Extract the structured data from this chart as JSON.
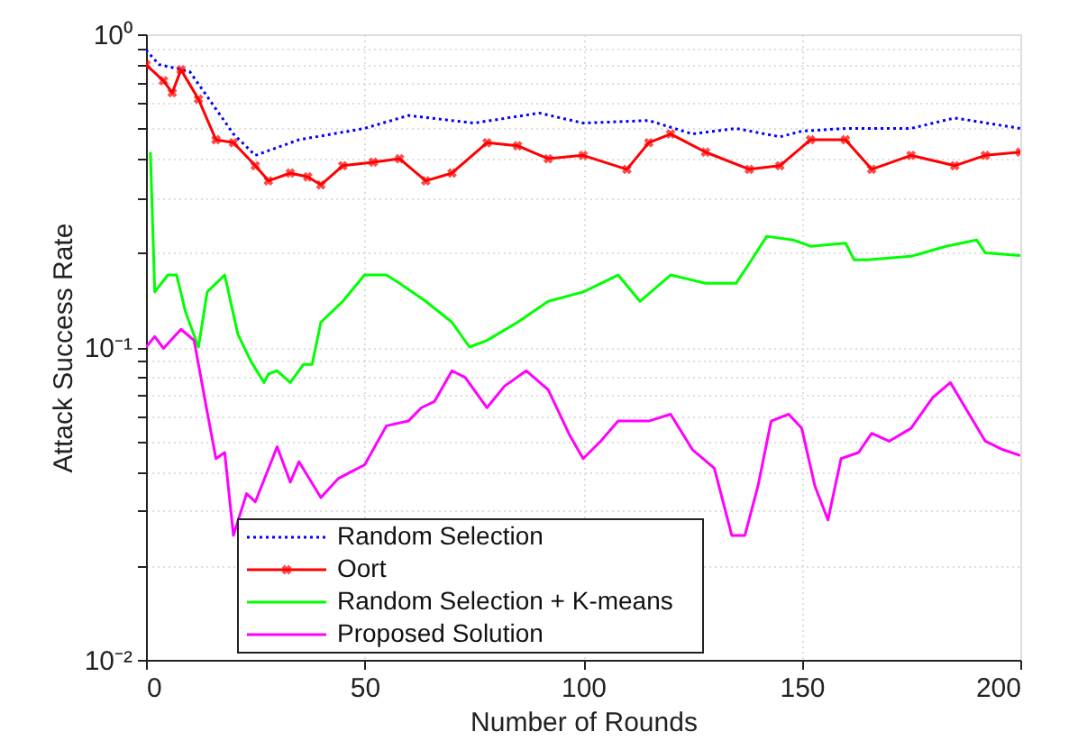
{
  "chart_data": {
    "type": "line",
    "xlabel": "Number of Rounds",
    "ylabel": "Attack Success Rate",
    "log": "y",
    "grid": true,
    "legend": "bottom left",
    "xlim": [
      0,
      200
    ],
    "xticks": [
      0,
      50,
      100,
      150,
      200
    ],
    "ylim": [
      0.01,
      1
    ],
    "yticks": [
      {
        "value": 0.01,
        "label": "10⁻²"
      },
      {
        "value": 0.02,
        "label": null
      },
      {
        "value": 0.03,
        "label": null
      },
      {
        "value": 0.04,
        "label": null
      },
      {
        "value": 0.05,
        "label": null
      },
      {
        "value": 0.06,
        "label": null
      },
      {
        "value": 0.07,
        "label": null
      },
      {
        "value": 0.08,
        "label": null
      },
      {
        "value": 0.09,
        "label": null
      },
      {
        "value": 0.1,
        "label": "10⁻¹"
      },
      {
        "value": 0.2,
        "label": null
      },
      {
        "value": 0.3,
        "label": null
      },
      {
        "value": 0.4,
        "label": null
      },
      {
        "value": 0.5,
        "label": null
      },
      {
        "value": 0.6,
        "label": null
      },
      {
        "value": 0.7,
        "label": null
      },
      {
        "value": 0.8,
        "label": null
      },
      {
        "value": 0.9,
        "label": null
      },
      {
        "value": 1,
        "label": "10⁰"
      }
    ],
    "series": [
      {
        "name": "Random Selection",
        "color": "#0000ff",
        "line_style": "dotted",
        "marker": "none",
        "x": [
          0,
          3,
          10,
          20,
          25,
          35,
          50,
          60,
          75,
          90,
          100,
          115,
          125,
          135,
          145,
          150,
          160,
          175,
          185,
          200
        ],
        "values": [
          0.89,
          0.8,
          0.76,
          0.48,
          0.41,
          0.46,
          0.5,
          0.55,
          0.52,
          0.56,
          0.52,
          0.53,
          0.48,
          0.5,
          0.47,
          0.49,
          0.5,
          0.5,
          0.54,
          0.5
        ]
      },
      {
        "name": "Oort",
        "color": "#ff0000",
        "line_style": "solid",
        "marker": "cross",
        "x": [
          0,
          4,
          6,
          8,
          12,
          16,
          20,
          25,
          28,
          33,
          37,
          40,
          45,
          52,
          58,
          64,
          70,
          78,
          85,
          92,
          100,
          110,
          115,
          120,
          128,
          138,
          145,
          152,
          160,
          166,
          175,
          185,
          192,
          200
        ],
        "values": [
          0.8,
          0.71,
          0.65,
          0.77,
          0.62,
          0.46,
          0.45,
          0.38,
          0.34,
          0.36,
          0.35,
          0.33,
          0.38,
          0.39,
          0.4,
          0.34,
          0.36,
          0.45,
          0.44,
          0.4,
          0.41,
          0.37,
          0.45,
          0.48,
          0.42,
          0.37,
          0.38,
          0.46,
          0.46,
          0.37,
          0.41,
          0.38,
          0.41,
          0.42
        ]
      },
      {
        "name": "Random Selection + K-means",
        "color": "#00ff00",
        "line_style": "solid",
        "marker": "none",
        "x": [
          1,
          2,
          5,
          7,
          9,
          12,
          14,
          18,
          21,
          24,
          27,
          28,
          30,
          33,
          36,
          38,
          40,
          45,
          50,
          55,
          58,
          64,
          70,
          74,
          78,
          85,
          92,
          100,
          108,
          113,
          120,
          128,
          135,
          138,
          142,
          148,
          152,
          160,
          162,
          165,
          175,
          183,
          190,
          192,
          200
        ],
        "values": [
          0.42,
          0.15,
          0.17,
          0.17,
          0.13,
          0.1,
          0.15,
          0.17,
          0.11,
          0.09,
          0.077,
          0.082,
          0.084,
          0.077,
          0.088,
          0.088,
          0.12,
          0.14,
          0.17,
          0.17,
          0.16,
          0.14,
          0.12,
          0.1,
          0.105,
          0.12,
          0.14,
          0.15,
          0.17,
          0.14,
          0.17,
          0.16,
          0.16,
          0.185,
          0.226,
          0.22,
          0.21,
          0.215,
          0.19,
          0.19,
          0.195,
          0.21,
          0.22,
          0.2,
          0.196
        ]
      },
      {
        "name": "Proposed Solution",
        "color": "#ff00ff",
        "line_style": "solid",
        "marker": "none",
        "x": [
          0,
          2,
          4,
          8,
          11,
          14,
          16,
          18,
          20,
          23,
          25,
          30,
          33,
          35,
          40,
          44,
          47,
          50,
          55,
          60,
          63,
          66,
          70,
          73,
          78,
          82,
          87,
          92,
          97,
          100,
          104,
          108,
          115,
          120,
          125,
          130,
          134,
          137,
          140,
          143,
          147,
          150,
          153,
          156,
          159,
          163,
          166,
          170,
          175,
          180,
          184,
          188,
          192,
          196,
          200
        ],
        "values": [
          0.1,
          0.108,
          0.099,
          0.114,
          0.105,
          0.062,
          0.044,
          0.046,
          0.025,
          0.034,
          0.032,
          0.048,
          0.037,
          0.043,
          0.033,
          0.038,
          0.04,
          0.042,
          0.056,
          0.058,
          0.064,
          0.067,
          0.084,
          0.08,
          0.064,
          0.075,
          0.084,
          0.073,
          0.052,
          0.044,
          0.05,
          0.058,
          0.058,
          0.061,
          0.047,
          0.041,
          0.025,
          0.025,
          0.036,
          0.058,
          0.061,
          0.055,
          0.036,
          0.028,
          0.044,
          0.046,
          0.053,
          0.05,
          0.055,
          0.069,
          0.077,
          0.062,
          0.05,
          0.047,
          0.045
        ]
      }
    ]
  }
}
